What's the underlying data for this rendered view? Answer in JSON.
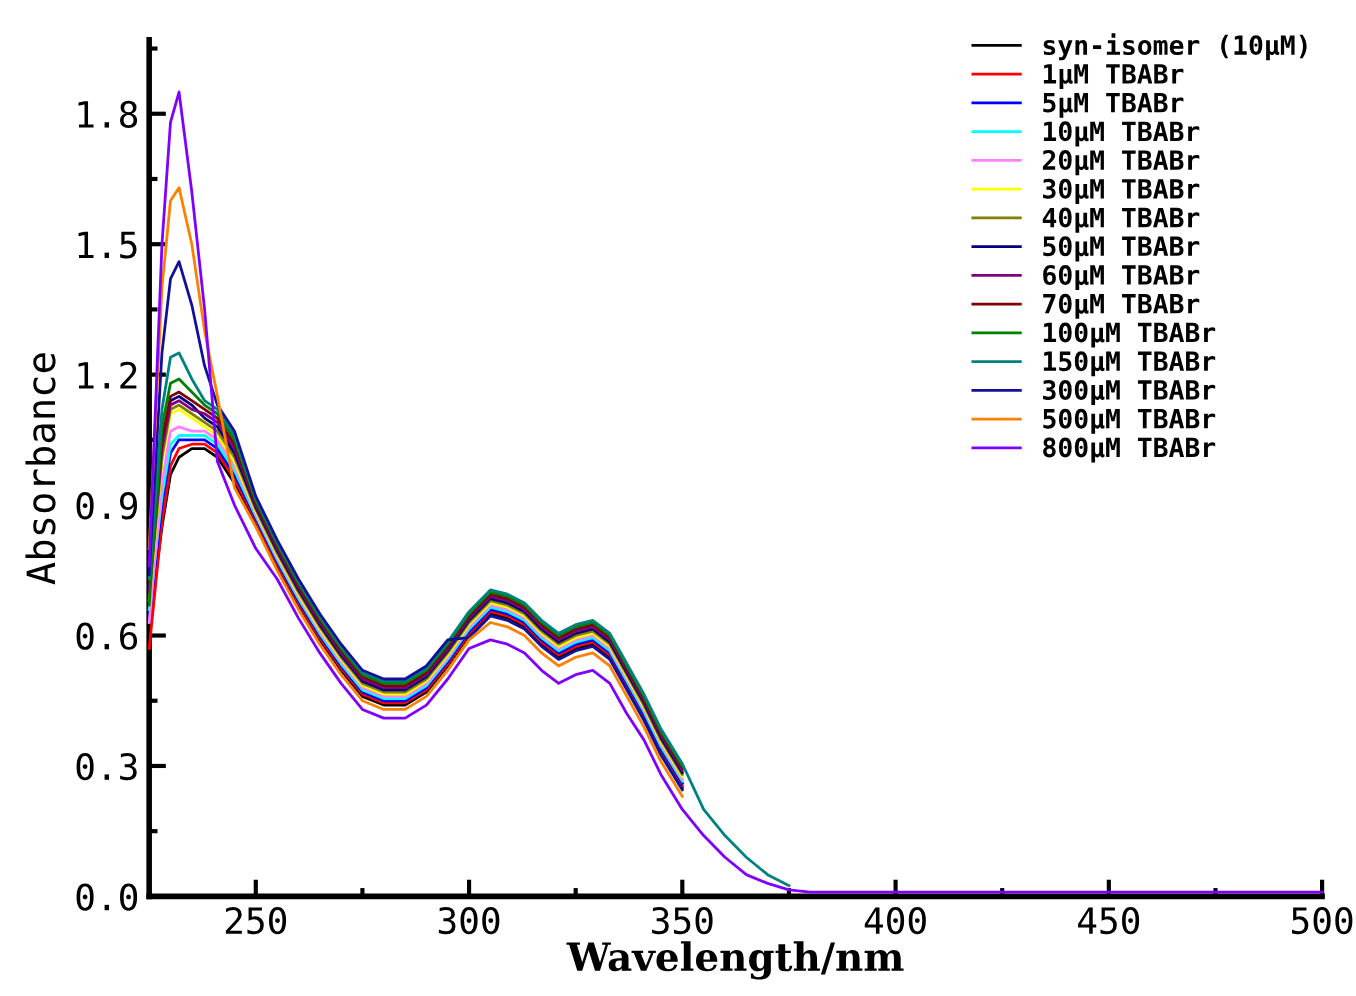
{
  "chart_data": {
    "type": "line",
    "xlabel": "Wavelength/nm",
    "ylabel": "Absorbance",
    "x": [
      225,
      228,
      230,
      232,
      235,
      238,
      241,
      245,
      250,
      255,
      260,
      265,
      270,
      275,
      280,
      285,
      290,
      295,
      300,
      305,
      309,
      313,
      317,
      321,
      325,
      329,
      333,
      337,
      341,
      345,
      350,
      355,
      360,
      365,
      370,
      375,
      380,
      390,
      420,
      460,
      500
    ],
    "xlim": [
      225,
      500
    ],
    "xticks": [
      250,
      300,
      350,
      400,
      450,
      500
    ],
    "ylim": [
      0,
      1.97
    ],
    "yticks": [
      {
        "value": 0,
        "label": "0.0"
      },
      0.3,
      0.6,
      0.9,
      1.2,
      1.5,
      1.8
    ],
    "grid": false,
    "legend": "top right",
    "marker": "none",
    "line_style": "solid",
    "series": [
      {
        "name": "syn-isomer (10μM)",
        "color": "#000000",
        "values": [
          0.62,
          0.85,
          0.97,
          1.01,
          1.03,
          1.03,
          1.01,
          0.95,
          0.86,
          0.76,
          0.67,
          0.59,
          0.52,
          0.46,
          0.44,
          0.44,
          0.47,
          0.53,
          0.6,
          0.65,
          0.64,
          0.62,
          0.58,
          0.55,
          0.57,
          0.58,
          0.55,
          0.48,
          0.41,
          0.33,
          0.25,
          null,
          null,
          null,
          null,
          null,
          null,
          null,
          null,
          null,
          null
        ]
      },
      {
        "name": "1μM TBABr",
        "color": "#ff0000",
        "values": [
          0.57,
          0.86,
          0.99,
          1.03,
          1.04,
          1.04,
          1.02,
          0.96,
          0.865,
          0.765,
          0.675,
          0.595,
          0.525,
          0.465,
          0.445,
          0.445,
          0.475,
          0.535,
          0.605,
          0.655,
          0.645,
          0.625,
          0.585,
          0.555,
          0.575,
          0.585,
          0.555,
          0.485,
          0.415,
          0.335,
          0.255,
          null,
          null,
          null,
          null,
          null,
          null,
          null,
          null,
          null,
          null
        ]
      },
      {
        "name": "5μM TBABr",
        "color": "#0000ff",
        "values": [
          0.64,
          0.9,
          1.02,
          1.05,
          1.05,
          1.05,
          1.03,
          0.97,
          0.87,
          0.77,
          0.68,
          0.6,
          0.53,
          0.47,
          0.45,
          0.45,
          0.48,
          0.54,
          0.61,
          0.66,
          0.65,
          0.63,
          0.59,
          0.56,
          0.58,
          0.59,
          0.56,
          0.49,
          0.42,
          0.34,
          0.26,
          null,
          null,
          null,
          null,
          null,
          null,
          null,
          null,
          null,
          null
        ]
      },
      {
        "name": "10μM TBABr",
        "color": "#00ffff",
        "values": [
          0.66,
          0.92,
          1.04,
          1.06,
          1.06,
          1.06,
          1.04,
          0.98,
          0.875,
          0.775,
          0.685,
          0.605,
          0.535,
          0.475,
          0.455,
          0.455,
          0.485,
          0.545,
          0.615,
          0.665,
          0.655,
          0.635,
          0.595,
          0.565,
          0.585,
          0.595,
          0.565,
          0.495,
          0.425,
          0.345,
          0.265,
          null,
          null,
          null,
          null,
          null,
          null,
          null,
          null,
          null,
          null
        ]
      },
      {
        "name": "20μM TBABr",
        "color": "#ff80ff",
        "values": [
          0.63,
          0.95,
          1.07,
          1.08,
          1.07,
          1.07,
          1.05,
          0.99,
          0.88,
          0.78,
          0.69,
          0.61,
          0.54,
          0.48,
          0.46,
          0.46,
          0.49,
          0.55,
          0.62,
          0.67,
          0.66,
          0.64,
          0.6,
          0.57,
          0.59,
          0.6,
          0.57,
          0.5,
          0.43,
          0.35,
          0.27,
          null,
          null,
          null,
          null,
          null,
          null,
          null,
          null,
          null,
          null
        ]
      },
      {
        "name": "30μM TBABr",
        "color": "#ffff00",
        "values": [
          0.68,
          1.0,
          1.11,
          1.12,
          1.1,
          1.08,
          1.06,
          1.0,
          0.885,
          0.785,
          0.695,
          0.615,
          0.545,
          0.485,
          0.465,
          0.465,
          0.495,
          0.555,
          0.625,
          0.675,
          0.665,
          0.645,
          0.605,
          0.575,
          0.595,
          0.605,
          0.575,
          0.505,
          0.435,
          0.355,
          0.275,
          null,
          null,
          null,
          null,
          null,
          null,
          null,
          null,
          null,
          null
        ]
      },
      {
        "name": "40μM TBABr",
        "color": "#808000",
        "values": [
          0.69,
          1.01,
          1.12,
          1.13,
          1.11,
          1.09,
          1.07,
          1.01,
          0.89,
          0.79,
          0.7,
          0.62,
          0.55,
          0.49,
          0.47,
          0.47,
          0.5,
          0.56,
          0.63,
          0.68,
          0.67,
          0.65,
          0.61,
          0.58,
          0.6,
          0.61,
          0.58,
          0.51,
          0.44,
          0.36,
          0.28,
          null,
          null,
          null,
          null,
          null,
          null,
          null,
          null,
          null,
          null
        ]
      },
      {
        "name": "50μM TBABr",
        "color": "#000080",
        "values": [
          0.71,
          1.04,
          1.14,
          1.15,
          1.13,
          1.1,
          1.08,
          1.02,
          0.895,
          0.795,
          0.705,
          0.625,
          0.555,
          0.495,
          0.475,
          0.475,
          0.505,
          0.565,
          0.635,
          0.685,
          0.675,
          0.655,
          0.615,
          0.585,
          0.605,
          0.615,
          0.585,
          0.515,
          0.445,
          0.365,
          0.285,
          null,
          null,
          null,
          null,
          null,
          null,
          null,
          null,
          null,
          null
        ]
      },
      {
        "name": "60μM TBABr",
        "color": "#800080",
        "values": [
          0.7,
          1.03,
          1.13,
          1.14,
          1.12,
          1.11,
          1.09,
          1.03,
          0.9,
          0.8,
          0.71,
          0.63,
          0.56,
          0.5,
          0.48,
          0.48,
          0.51,
          0.57,
          0.64,
          0.69,
          0.68,
          0.66,
          0.62,
          0.59,
          0.61,
          0.62,
          0.59,
          0.52,
          0.45,
          0.37,
          0.29,
          null,
          null,
          null,
          null,
          null,
          null,
          null,
          null,
          null,
          null
        ]
      },
      {
        "name": "70μM TBABr",
        "color": "#800000",
        "values": [
          0.72,
          1.05,
          1.15,
          1.16,
          1.14,
          1.12,
          1.1,
          1.04,
          0.905,
          0.805,
          0.715,
          0.635,
          0.565,
          0.505,
          0.485,
          0.485,
          0.515,
          0.575,
          0.645,
          0.695,
          0.685,
          0.665,
          0.625,
          0.595,
          0.615,
          0.625,
          0.595,
          0.525,
          0.455,
          0.375,
          0.295,
          null,
          null,
          null,
          null,
          null,
          null,
          null,
          null,
          null,
          null
        ]
      },
      {
        "name": "100μM TBABr",
        "color": "#008000",
        "values": [
          0.67,
          1.08,
          1.18,
          1.19,
          1.16,
          1.13,
          1.11,
          1.05,
          0.91,
          0.81,
          0.72,
          0.64,
          0.57,
          0.51,
          0.49,
          0.49,
          0.52,
          0.58,
          0.65,
          0.7,
          0.69,
          0.67,
          0.63,
          0.6,
          0.62,
          0.63,
          0.6,
          0.53,
          0.46,
          0.38,
          0.3,
          null,
          null,
          null,
          null,
          null,
          null,
          null,
          null,
          null,
          null
        ]
      },
      {
        "name": "150μM TBABr",
        "color": "#008080",
        "values": [
          0.73,
          1.12,
          1.24,
          1.25,
          1.19,
          1.14,
          1.12,
          1.06,
          0.915,
          0.815,
          0.725,
          0.645,
          0.575,
          0.515,
          0.495,
          0.495,
          0.525,
          0.585,
          0.655,
          0.705,
          0.695,
          0.675,
          0.635,
          0.605,
          0.625,
          0.635,
          0.605,
          0.535,
          0.465,
          0.385,
          0.305,
          0.2,
          0.14,
          0.09,
          0.05,
          0.025,
          null,
          null,
          null,
          null,
          null
        ]
      },
      {
        "name": "300μM TBABr",
        "color": "#10109a",
        "values": [
          0.74,
          1.25,
          1.42,
          1.46,
          1.36,
          1.22,
          1.13,
          1.07,
          0.92,
          0.82,
          0.73,
          0.65,
          0.58,
          0.52,
          0.5,
          0.5,
          0.53,
          0.59,
          0.595,
          0.645,
          0.635,
          0.615,
          0.575,
          0.545,
          0.565,
          0.575,
          0.545,
          0.475,
          0.405,
          0.325,
          0.245,
          null,
          null,
          null,
          null,
          null,
          null,
          null,
          null,
          null,
          null
        ]
      },
      {
        "name": "500μM TBABr",
        "color": "#ff8000",
        "values": [
          0.8,
          1.4,
          1.6,
          1.63,
          1.5,
          1.3,
          1.15,
          0.94,
          0.85,
          0.75,
          0.66,
          0.58,
          0.51,
          0.45,
          0.43,
          0.43,
          0.46,
          0.52,
          0.59,
          0.63,
          0.62,
          0.6,
          0.56,
          0.53,
          0.55,
          0.56,
          0.53,
          0.46,
          0.39,
          0.31,
          0.23,
          null,
          null,
          null,
          null,
          null,
          null,
          null,
          null,
          null,
          null
        ]
      },
      {
        "name": "800μM TBABr",
        "color": "#8000ff",
        "values": [
          0.76,
          1.5,
          1.78,
          1.85,
          1.62,
          1.35,
          1.0,
          0.9,
          0.8,
          0.73,
          0.64,
          0.56,
          0.49,
          0.43,
          0.41,
          0.41,
          0.44,
          0.5,
          0.57,
          0.59,
          0.58,
          0.56,
          0.52,
          0.49,
          0.51,
          0.52,
          0.49,
          0.42,
          0.36,
          0.28,
          0.2,
          0.14,
          0.09,
          0.05,
          0.03,
          0.015,
          0.01,
          0.01,
          0.01,
          0.01,
          0.01
        ]
      }
    ]
  }
}
